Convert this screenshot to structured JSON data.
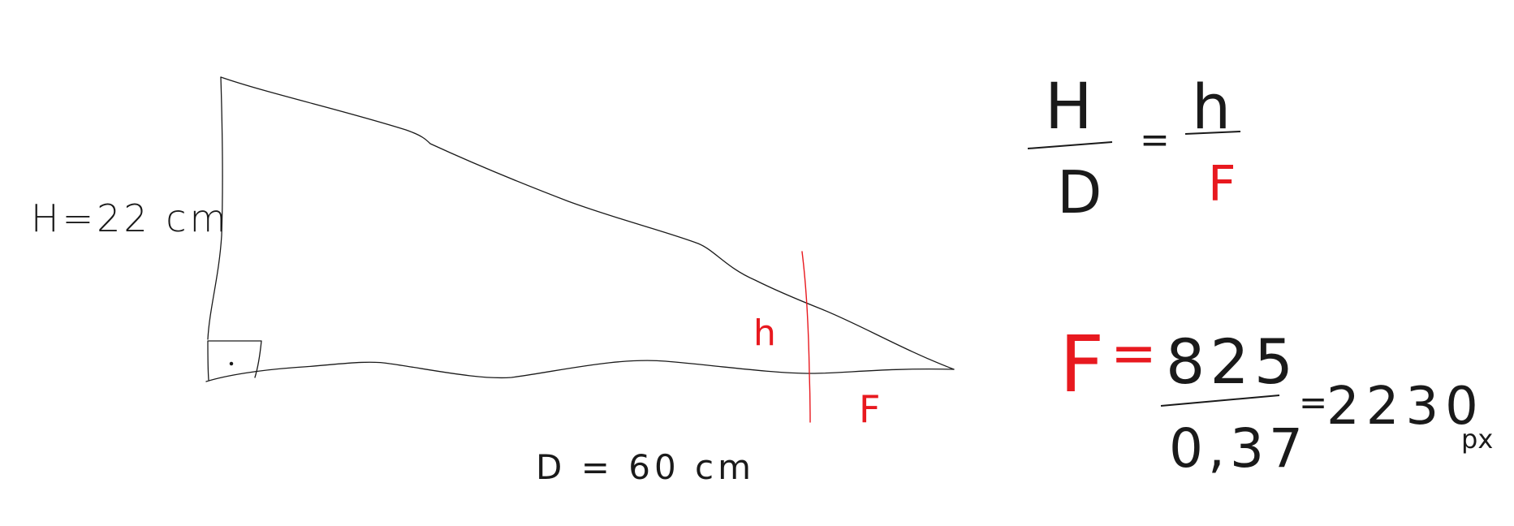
{
  "triangle": {
    "height_label": "H=22 cm",
    "base_label": "D = 60 cm",
    "small_height_label": "h",
    "small_base_label": "F"
  },
  "proportion": {
    "top_left": "H",
    "bottom_left": "D",
    "equals": "=",
    "top_right": "h",
    "bottom_right": "F"
  },
  "result": {
    "var": "F",
    "equals": "=",
    "numerator": "825",
    "denominator": "0,37",
    "equals2": "=",
    "value": "2230",
    "unit": "px"
  },
  "colors": {
    "ink": "#1a1a1a",
    "accent": "#e8191f"
  }
}
